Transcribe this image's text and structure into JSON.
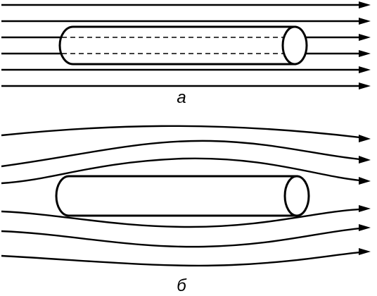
{
  "panels": [
    {
      "id": "a",
      "label": "а",
      "flow": "uniform"
    },
    {
      "id": "b",
      "label": "б",
      "flow": "deflected"
    }
  ],
  "colors": {
    "stroke": "#000000",
    "background": "#ffffff"
  }
}
